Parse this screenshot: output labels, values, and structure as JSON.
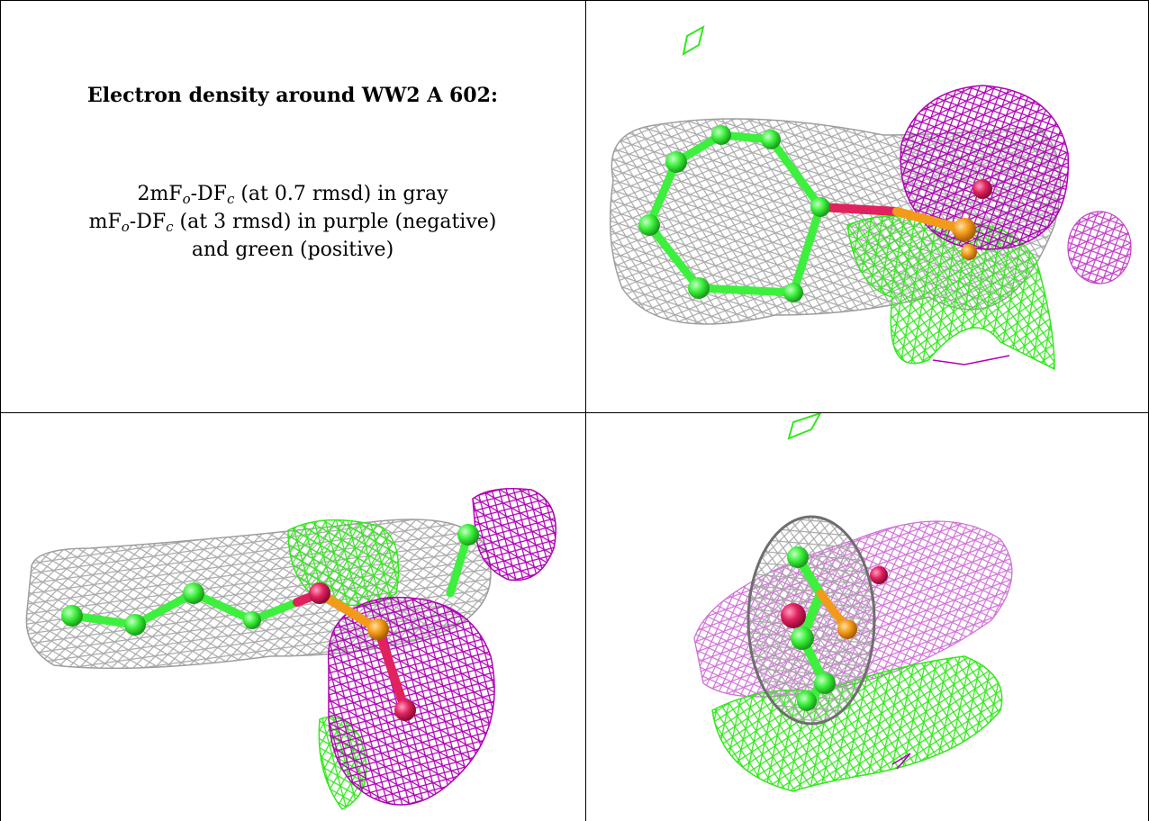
{
  "caption": {
    "title": "Electron density around WW2 A 602:",
    "line1_pre": "2mF",
    "line1_sub1": "o",
    "line1_mid": "-DF",
    "line1_sub2": "c",
    "line1_post": " (at 0.7 rmsd) in gray",
    "line2_pre": "mF",
    "line2_sub1": "o",
    "line2_mid": "-DF",
    "line2_sub2": "c",
    "line2_post": " (at 3 rmsd) in purple (negative)",
    "line3": "and green (positive)"
  },
  "colors": {
    "gray_mesh": "#9e9e9e",
    "negative_mesh": "#b000b5",
    "positive_mesh": "#33e81c",
    "carbon_atom": "#3df03d",
    "oxygen_atom": "#e0225f",
    "phosphorus_atom": "#f39a1a",
    "border": "#000000"
  },
  "panels": [
    "caption",
    "view-top-right",
    "view-bottom-left",
    "view-bottom-right"
  ]
}
